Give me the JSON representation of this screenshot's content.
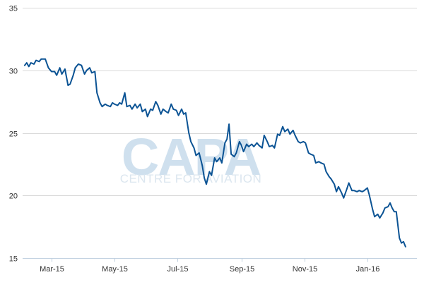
{
  "chart_data": {
    "type": "line",
    "title": "",
    "xlabel": "",
    "ylabel": "",
    "ylim": [
      15,
      35
    ],
    "yticks": [
      15,
      20,
      25,
      30,
      35
    ],
    "xtick_labels": [
      "Mar-15",
      "May-15",
      "Jul-15",
      "Sep-15",
      "Nov-15",
      "Jan-16"
    ],
    "xtick_dates": [
      "2015-03-01",
      "2015-05-01",
      "2015-07-01",
      "2015-09-01",
      "2015-11-01",
      "2016-01-01"
    ],
    "xlim": [
      "2015-02-01",
      "2016-02-18"
    ],
    "grid": "horizontal",
    "legend": "none",
    "series": [
      {
        "color": "#0b5394",
        "points": [
          [
            "2015-02-03",
            30.4
          ],
          [
            "2015-02-05",
            30.6
          ],
          [
            "2015-02-07",
            30.3
          ],
          [
            "2015-02-09",
            30.6
          ],
          [
            "2015-02-12",
            30.5
          ],
          [
            "2015-02-14",
            30.8
          ],
          [
            "2015-02-17",
            30.7
          ],
          [
            "2015-02-19",
            30.9
          ],
          [
            "2015-02-23",
            30.9
          ],
          [
            "2015-02-26",
            30.2
          ],
          [
            "2015-03-01",
            29.9
          ],
          [
            "2015-03-04",
            29.9
          ],
          [
            "2015-03-06",
            29.6
          ],
          [
            "2015-03-09",
            30.2
          ],
          [
            "2015-03-11",
            29.7
          ],
          [
            "2015-03-14",
            30.1
          ],
          [
            "2015-03-17",
            28.8
          ],
          [
            "2015-03-19",
            28.9
          ],
          [
            "2015-03-22",
            29.6
          ],
          [
            "2015-03-24",
            30.2
          ],
          [
            "2015-03-27",
            30.5
          ],
          [
            "2015-03-30",
            30.4
          ],
          [
            "2015-04-02",
            29.7
          ],
          [
            "2015-04-04",
            30.0
          ],
          [
            "2015-04-07",
            30.2
          ],
          [
            "2015-04-09",
            29.8
          ],
          [
            "2015-04-12",
            29.9
          ],
          [
            "2015-04-14",
            28.2
          ],
          [
            "2015-04-17",
            27.4
          ],
          [
            "2015-04-19",
            27.1
          ],
          [
            "2015-04-22",
            27.3
          ],
          [
            "2015-04-24",
            27.2
          ],
          [
            "2015-04-27",
            27.1
          ],
          [
            "2015-04-29",
            27.4
          ],
          [
            "2015-05-01",
            27.3
          ],
          [
            "2015-05-04",
            27.2
          ],
          [
            "2015-05-06",
            27.4
          ],
          [
            "2015-05-08",
            27.3
          ],
          [
            "2015-05-11",
            28.2
          ],
          [
            "2015-05-13",
            27.1
          ],
          [
            "2015-05-16",
            27.2
          ],
          [
            "2015-05-18",
            26.9
          ],
          [
            "2015-05-21",
            27.3
          ],
          [
            "2015-05-23",
            27.0
          ],
          [
            "2015-05-26",
            27.3
          ],
          [
            "2015-05-28",
            26.7
          ],
          [
            "2015-05-31",
            26.9
          ],
          [
            "2015-06-02",
            26.3
          ],
          [
            "2015-06-05",
            26.9
          ],
          [
            "2015-06-07",
            26.8
          ],
          [
            "2015-06-10",
            27.5
          ],
          [
            "2015-06-12",
            27.2
          ],
          [
            "2015-06-15",
            26.5
          ],
          [
            "2015-06-17",
            26.9
          ],
          [
            "2015-06-20",
            26.7
          ],
          [
            "2015-06-22",
            26.6
          ],
          [
            "2015-06-25",
            27.3
          ],
          [
            "2015-06-27",
            26.9
          ],
          [
            "2015-06-30",
            26.8
          ],
          [
            "2015-07-02",
            26.4
          ],
          [
            "2015-07-05",
            26.9
          ],
          [
            "2015-07-07",
            26.5
          ],
          [
            "2015-07-09",
            26.6
          ],
          [
            "2015-07-12",
            25.0
          ],
          [
            "2015-07-14",
            24.3
          ],
          [
            "2015-07-17",
            23.8
          ],
          [
            "2015-07-19",
            23.2
          ],
          [
            "2015-07-22",
            23.4
          ],
          [
            "2015-07-25",
            22.4
          ],
          [
            "2015-07-27",
            21.4
          ],
          [
            "2015-07-29",
            20.9
          ],
          [
            "2015-08-01",
            21.9
          ],
          [
            "2015-08-03",
            21.6
          ],
          [
            "2015-08-06",
            23.0
          ],
          [
            "2015-08-08",
            22.7
          ],
          [
            "2015-08-11",
            23.0
          ],
          [
            "2015-08-13",
            22.6
          ],
          [
            "2015-08-16",
            24.2
          ],
          [
            "2015-08-18",
            24.5
          ],
          [
            "2015-08-20",
            25.7
          ],
          [
            "2015-08-22",
            23.3
          ],
          [
            "2015-08-25",
            23.1
          ],
          [
            "2015-08-27",
            23.4
          ],
          [
            "2015-08-30",
            24.3
          ],
          [
            "2015-09-01",
            24.0
          ],
          [
            "2015-09-03",
            23.5
          ],
          [
            "2015-09-06",
            24.1
          ],
          [
            "2015-09-08",
            23.9
          ],
          [
            "2015-09-11",
            24.1
          ],
          [
            "2015-09-13",
            23.9
          ],
          [
            "2015-09-16",
            24.2
          ],
          [
            "2015-09-18",
            24.0
          ],
          [
            "2015-09-21",
            23.8
          ],
          [
            "2015-09-23",
            24.8
          ],
          [
            "2015-09-26",
            24.3
          ],
          [
            "2015-09-28",
            23.9
          ],
          [
            "2015-10-01",
            24.0
          ],
          [
            "2015-10-03",
            23.8
          ],
          [
            "2015-10-06",
            24.9
          ],
          [
            "2015-10-08",
            24.8
          ],
          [
            "2015-10-11",
            25.5
          ],
          [
            "2015-10-13",
            25.1
          ],
          [
            "2015-10-16",
            25.3
          ],
          [
            "2015-10-18",
            24.9
          ],
          [
            "2015-10-21",
            25.2
          ],
          [
            "2015-10-23",
            24.8
          ],
          [
            "2015-10-26",
            24.3
          ],
          [
            "2015-10-28",
            24.2
          ],
          [
            "2015-10-31",
            24.3
          ],
          [
            "2015-11-02",
            24.2
          ],
          [
            "2015-11-05",
            23.4
          ],
          [
            "2015-11-07",
            23.3
          ],
          [
            "2015-11-10",
            23.2
          ],
          [
            "2015-11-12",
            22.6
          ],
          [
            "2015-11-15",
            22.7
          ],
          [
            "2015-11-17",
            22.6
          ],
          [
            "2015-11-20",
            22.5
          ],
          [
            "2015-11-22",
            21.9
          ],
          [
            "2015-11-25",
            21.5
          ],
          [
            "2015-11-27",
            21.3
          ],
          [
            "2015-11-30",
            20.9
          ],
          [
            "2015-12-02",
            20.3
          ],
          [
            "2015-12-04",
            20.7
          ],
          [
            "2015-12-07",
            20.2
          ],
          [
            "2015-12-09",
            19.8
          ],
          [
            "2015-12-12",
            20.5
          ],
          [
            "2015-12-14",
            21.0
          ],
          [
            "2015-12-17",
            20.4
          ],
          [
            "2015-12-19",
            20.4
          ],
          [
            "2015-12-22",
            20.3
          ],
          [
            "2015-12-24",
            20.4
          ],
          [
            "2015-12-27",
            20.3
          ],
          [
            "2015-12-29",
            20.4
          ],
          [
            "2016-01-01",
            20.6
          ],
          [
            "2016-01-03",
            20.0
          ],
          [
            "2016-01-06",
            18.9
          ],
          [
            "2016-01-08",
            18.3
          ],
          [
            "2016-01-11",
            18.5
          ],
          [
            "2016-01-13",
            18.2
          ],
          [
            "2016-01-16",
            18.6
          ],
          [
            "2016-01-18",
            19.0
          ],
          [
            "2016-01-21",
            19.1
          ],
          [
            "2016-01-23",
            19.4
          ],
          [
            "2016-01-25",
            19.0
          ],
          [
            "2016-01-27",
            18.7
          ],
          [
            "2016-01-29",
            18.7
          ],
          [
            "2016-02-01",
            16.6
          ],
          [
            "2016-02-03",
            16.2
          ],
          [
            "2016-02-05",
            16.3
          ],
          [
            "2016-02-07",
            15.9
          ]
        ]
      }
    ]
  },
  "watermark": {
    "logo_text": "CAPA",
    "tagline": "CENTRE FOR AVIATION"
  }
}
